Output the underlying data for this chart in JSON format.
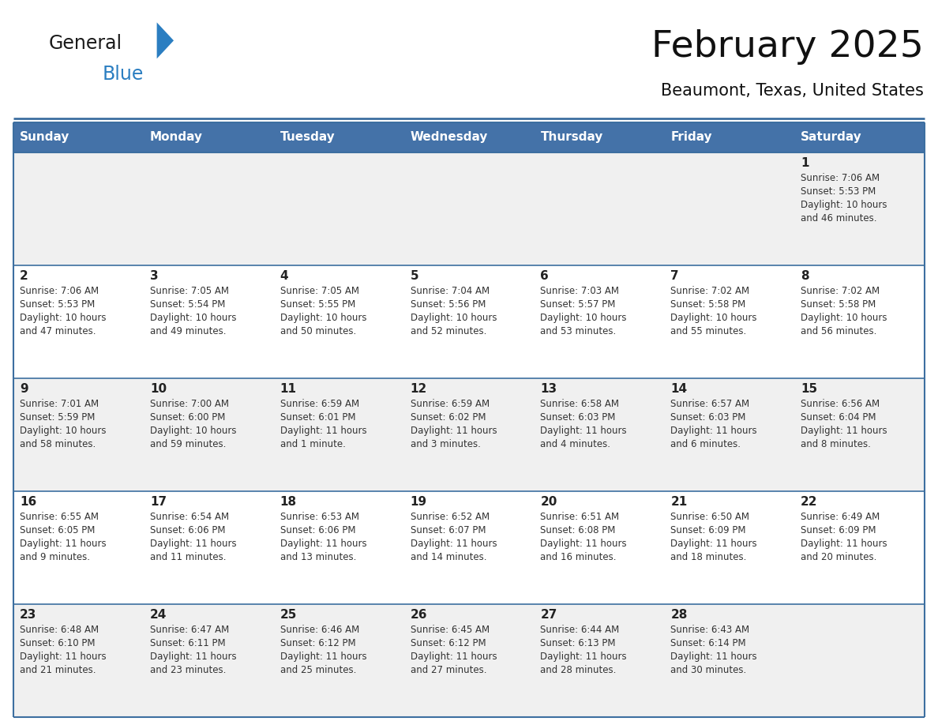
{
  "title": "February 2025",
  "subtitle": "Beaumont, Texas, United States",
  "header_bg": "#4472a8",
  "header_text_color": "#ffffff",
  "cell_bg_odd": "#f0f0f0",
  "cell_bg_even": "#ffffff",
  "day_number_color": "#222222",
  "info_text_color": "#333333",
  "border_color": "#3d6fa0",
  "logo_black": "#1a1a1a",
  "logo_blue": "#2b7ec1",
  "logo_triangle": "#2b7ec1",
  "days_of_week": [
    "Sunday",
    "Monday",
    "Tuesday",
    "Wednesday",
    "Thursday",
    "Friday",
    "Saturday"
  ],
  "weeks": [
    [
      null,
      null,
      null,
      null,
      null,
      null,
      1
    ],
    [
      2,
      3,
      4,
      5,
      6,
      7,
      8
    ],
    [
      9,
      10,
      11,
      12,
      13,
      14,
      15
    ],
    [
      16,
      17,
      18,
      19,
      20,
      21,
      22
    ],
    [
      23,
      24,
      25,
      26,
      27,
      28,
      null
    ]
  ],
  "day_data": {
    "1": {
      "sunrise": "7:06 AM",
      "sunset": "5:53 PM",
      "daylight_line1": "Daylight: 10 hours",
      "daylight_line2": "and 46 minutes."
    },
    "2": {
      "sunrise": "7:06 AM",
      "sunset": "5:53 PM",
      "daylight_line1": "Daylight: 10 hours",
      "daylight_line2": "and 47 minutes."
    },
    "3": {
      "sunrise": "7:05 AM",
      "sunset": "5:54 PM",
      "daylight_line1": "Daylight: 10 hours",
      "daylight_line2": "and 49 minutes."
    },
    "4": {
      "sunrise": "7:05 AM",
      "sunset": "5:55 PM",
      "daylight_line1": "Daylight: 10 hours",
      "daylight_line2": "and 50 minutes."
    },
    "5": {
      "sunrise": "7:04 AM",
      "sunset": "5:56 PM",
      "daylight_line1": "Daylight: 10 hours",
      "daylight_line2": "and 52 minutes."
    },
    "6": {
      "sunrise": "7:03 AM",
      "sunset": "5:57 PM",
      "daylight_line1": "Daylight: 10 hours",
      "daylight_line2": "and 53 minutes."
    },
    "7": {
      "sunrise": "7:02 AM",
      "sunset": "5:58 PM",
      "daylight_line1": "Daylight: 10 hours",
      "daylight_line2": "and 55 minutes."
    },
    "8": {
      "sunrise": "7:02 AM",
      "sunset": "5:58 PM",
      "daylight_line1": "Daylight: 10 hours",
      "daylight_line2": "and 56 minutes."
    },
    "9": {
      "sunrise": "7:01 AM",
      "sunset": "5:59 PM",
      "daylight_line1": "Daylight: 10 hours",
      "daylight_line2": "and 58 minutes."
    },
    "10": {
      "sunrise": "7:00 AM",
      "sunset": "6:00 PM",
      "daylight_line1": "Daylight: 10 hours",
      "daylight_line2": "and 59 minutes."
    },
    "11": {
      "sunrise": "6:59 AM",
      "sunset": "6:01 PM",
      "daylight_line1": "Daylight: 11 hours",
      "daylight_line2": "and 1 minute."
    },
    "12": {
      "sunrise": "6:59 AM",
      "sunset": "6:02 PM",
      "daylight_line1": "Daylight: 11 hours",
      "daylight_line2": "and 3 minutes."
    },
    "13": {
      "sunrise": "6:58 AM",
      "sunset": "6:03 PM",
      "daylight_line1": "Daylight: 11 hours",
      "daylight_line2": "and 4 minutes."
    },
    "14": {
      "sunrise": "6:57 AM",
      "sunset": "6:03 PM",
      "daylight_line1": "Daylight: 11 hours",
      "daylight_line2": "and 6 minutes."
    },
    "15": {
      "sunrise": "6:56 AM",
      "sunset": "6:04 PM",
      "daylight_line1": "Daylight: 11 hours",
      "daylight_line2": "and 8 minutes."
    },
    "16": {
      "sunrise": "6:55 AM",
      "sunset": "6:05 PM",
      "daylight_line1": "Daylight: 11 hours",
      "daylight_line2": "and 9 minutes."
    },
    "17": {
      "sunrise": "6:54 AM",
      "sunset": "6:06 PM",
      "daylight_line1": "Daylight: 11 hours",
      "daylight_line2": "and 11 minutes."
    },
    "18": {
      "sunrise": "6:53 AM",
      "sunset": "6:06 PM",
      "daylight_line1": "Daylight: 11 hours",
      "daylight_line2": "and 13 minutes."
    },
    "19": {
      "sunrise": "6:52 AM",
      "sunset": "6:07 PM",
      "daylight_line1": "Daylight: 11 hours",
      "daylight_line2": "and 14 minutes."
    },
    "20": {
      "sunrise": "6:51 AM",
      "sunset": "6:08 PM",
      "daylight_line1": "Daylight: 11 hours",
      "daylight_line2": "and 16 minutes."
    },
    "21": {
      "sunrise": "6:50 AM",
      "sunset": "6:09 PM",
      "daylight_line1": "Daylight: 11 hours",
      "daylight_line2": "and 18 minutes."
    },
    "22": {
      "sunrise": "6:49 AM",
      "sunset": "6:09 PM",
      "daylight_line1": "Daylight: 11 hours",
      "daylight_line2": "and 20 minutes."
    },
    "23": {
      "sunrise": "6:48 AM",
      "sunset": "6:10 PM",
      "daylight_line1": "Daylight: 11 hours",
      "daylight_line2": "and 21 minutes."
    },
    "24": {
      "sunrise": "6:47 AM",
      "sunset": "6:11 PM",
      "daylight_line1": "Daylight: 11 hours",
      "daylight_line2": "and 23 minutes."
    },
    "25": {
      "sunrise": "6:46 AM",
      "sunset": "6:12 PM",
      "daylight_line1": "Daylight: 11 hours",
      "daylight_line2": "and 25 minutes."
    },
    "26": {
      "sunrise": "6:45 AM",
      "sunset": "6:12 PM",
      "daylight_line1": "Daylight: 11 hours",
      "daylight_line2": "and 27 minutes."
    },
    "27": {
      "sunrise": "6:44 AM",
      "sunset": "6:13 PM",
      "daylight_line1": "Daylight: 11 hours",
      "daylight_line2": "and 28 minutes."
    },
    "28": {
      "sunrise": "6:43 AM",
      "sunset": "6:14 PM",
      "daylight_line1": "Daylight: 11 hours",
      "daylight_line2": "and 30 minutes."
    }
  },
  "fig_width": 11.88,
  "fig_height": 9.18,
  "dpi": 100
}
